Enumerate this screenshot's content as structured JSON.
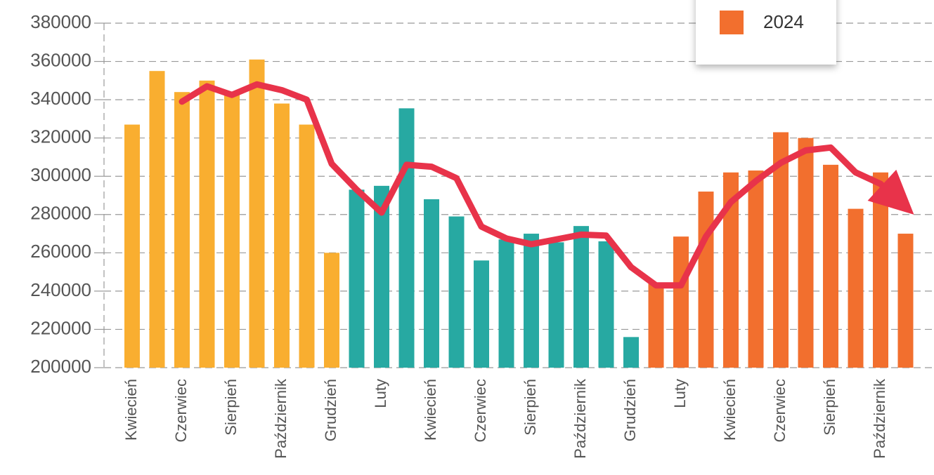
{
  "chart_data": {
    "type": "bar",
    "categories": [
      "Kwiecień",
      null,
      "Czerwiec",
      null,
      "Sierpień",
      null,
      "Październik",
      null,
      "Grudzień",
      null,
      "Luty",
      null,
      "Kwiecień",
      null,
      "Czerwiec",
      null,
      "Sierpień",
      null,
      "Październik",
      null,
      "Grudzień",
      null,
      "Luty",
      null,
      "Kwiecień",
      null,
      "Czerwiec",
      null,
      "Sierpień",
      null,
      "Październik",
      null
    ],
    "values": [
      327000,
      355000,
      344000,
      350000,
      343000,
      361000,
      338000,
      327000,
      260000,
      293000,
      295000,
      335500,
      288000,
      279000,
      256000,
      267000,
      270000,
      265500,
      274000,
      266000,
      216000,
      244000,
      268500,
      292000,
      302000,
      303000,
      323000,
      320000,
      306000,
      283000,
      302000,
      270000
    ],
    "colors": [
      "#f9ae30",
      "#f9ae30",
      "#f9ae30",
      "#f9ae30",
      "#f9ae30",
      "#f9ae30",
      "#f9ae30",
      "#f9ae30",
      "#f9ae30",
      "#27a9a2",
      "#27a9a2",
      "#27a9a2",
      "#27a9a2",
      "#27a9a2",
      "#27a9a2",
      "#27a9a2",
      "#27a9a2",
      "#27a9a2",
      "#27a9a2",
      "#27a9a2",
      "#27a9a2",
      "#f26f2e",
      "#f26f2e",
      "#f26f2e",
      "#f26f2e",
      "#f26f2e",
      "#f26f2e",
      "#f26f2e",
      "#f26f2e",
      "#f26f2e",
      "#f26f2e",
      "#f26f2e"
    ],
    "trend": {
      "color": "#e8334a",
      "values": [
        null,
        null,
        339000,
        347000,
        342500,
        348000,
        345000,
        340000,
        306500,
        293000,
        281000,
        306000,
        305000,
        299000,
        273700,
        267500,
        264500,
        267000,
        269500,
        269000,
        252500,
        243000,
        243000,
        268500,
        286500,
        297500,
        307000,
        313500,
        315000,
        302000,
        296000,
        284000
      ]
    },
    "legend": {
      "position": "top-right",
      "label": "2024",
      "color": "#f26f2e"
    },
    "ylim": [
      200000,
      380000
    ],
    "yticks": [
      200000,
      220000,
      240000,
      260000,
      280000,
      300000,
      320000,
      340000,
      360000,
      380000
    ],
    "grid": true
  }
}
